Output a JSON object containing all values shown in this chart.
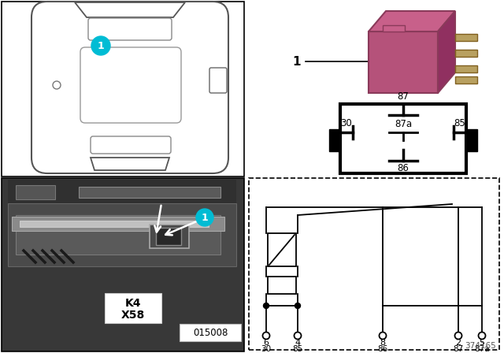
{
  "fig_bg": "#ffffff",
  "cyan_color": "#00bcd4",
  "relay_color": "#b5527a",
  "relay_color_top": "#c8608a",
  "relay_color_right": "#903060",
  "relay_ec": "#8a3a5a",
  "pin_color": "#b8a060",
  "pin_ec": "#806020",
  "photo_bg": "#404040",
  "k4_text": "K4",
  "x58_text": "X58",
  "diagram_id": "015008",
  "ref_id": "374165",
  "car_ec": "#555555",
  "label_1": "1"
}
